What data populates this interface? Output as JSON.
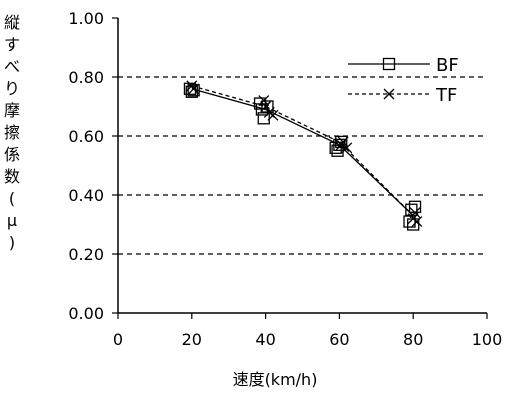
{
  "chart_data": {
    "type": "scatter",
    "xlabel": "速度(km/h)",
    "ylabel": "縦すべり摩擦係数(μ)",
    "xlim": [
      0,
      100
    ],
    "ylim": [
      0,
      1.0
    ],
    "x_ticks": [
      "0",
      "20",
      "40",
      "60",
      "80",
      "100"
    ],
    "y_ticks": [
      "0.00",
      "0.20",
      "0.40",
      "0.60",
      "0.80",
      "1.00"
    ],
    "grid": "horizontal dashed",
    "legend_position": "top-right",
    "series": [
      {
        "name": "BF",
        "line": "solid",
        "marker": "square",
        "points": [
          [
            19.5,
            0.76
          ],
          [
            20.0,
            0.75
          ],
          [
            20.5,
            0.755
          ],
          [
            38.5,
            0.71
          ],
          [
            39.0,
            0.69
          ],
          [
            39.5,
            0.66
          ],
          [
            40.5,
            0.7
          ],
          [
            59.0,
            0.56
          ],
          [
            59.5,
            0.55
          ],
          [
            60.0,
            0.57
          ],
          [
            60.5,
            0.58
          ],
          [
            79.0,
            0.31
          ],
          [
            79.5,
            0.35
          ],
          [
            80.0,
            0.3
          ],
          [
            80.5,
            0.36
          ]
        ],
        "line_path": [
          [
            20,
            0.76
          ],
          [
            40,
            0.69
          ],
          [
            60,
            0.57
          ],
          [
            80,
            0.33
          ]
        ]
      },
      {
        "name": "TF",
        "line": "dashed",
        "marker": "x",
        "points": [
          [
            20.0,
            0.77
          ],
          [
            20.5,
            0.76
          ],
          [
            39.5,
            0.72
          ],
          [
            40.0,
            0.7
          ],
          [
            41.0,
            0.68
          ],
          [
            42.0,
            0.67
          ],
          [
            60.5,
            0.57
          ],
          [
            61.0,
            0.58
          ],
          [
            62.0,
            0.56
          ],
          [
            80.0,
            0.32
          ],
          [
            80.5,
            0.34
          ],
          [
            81.0,
            0.31
          ]
        ],
        "line_path": [
          [
            20,
            0.77
          ],
          [
            40,
            0.7
          ],
          [
            60,
            0.58
          ],
          [
            80,
            0.33
          ]
        ]
      }
    ]
  }
}
